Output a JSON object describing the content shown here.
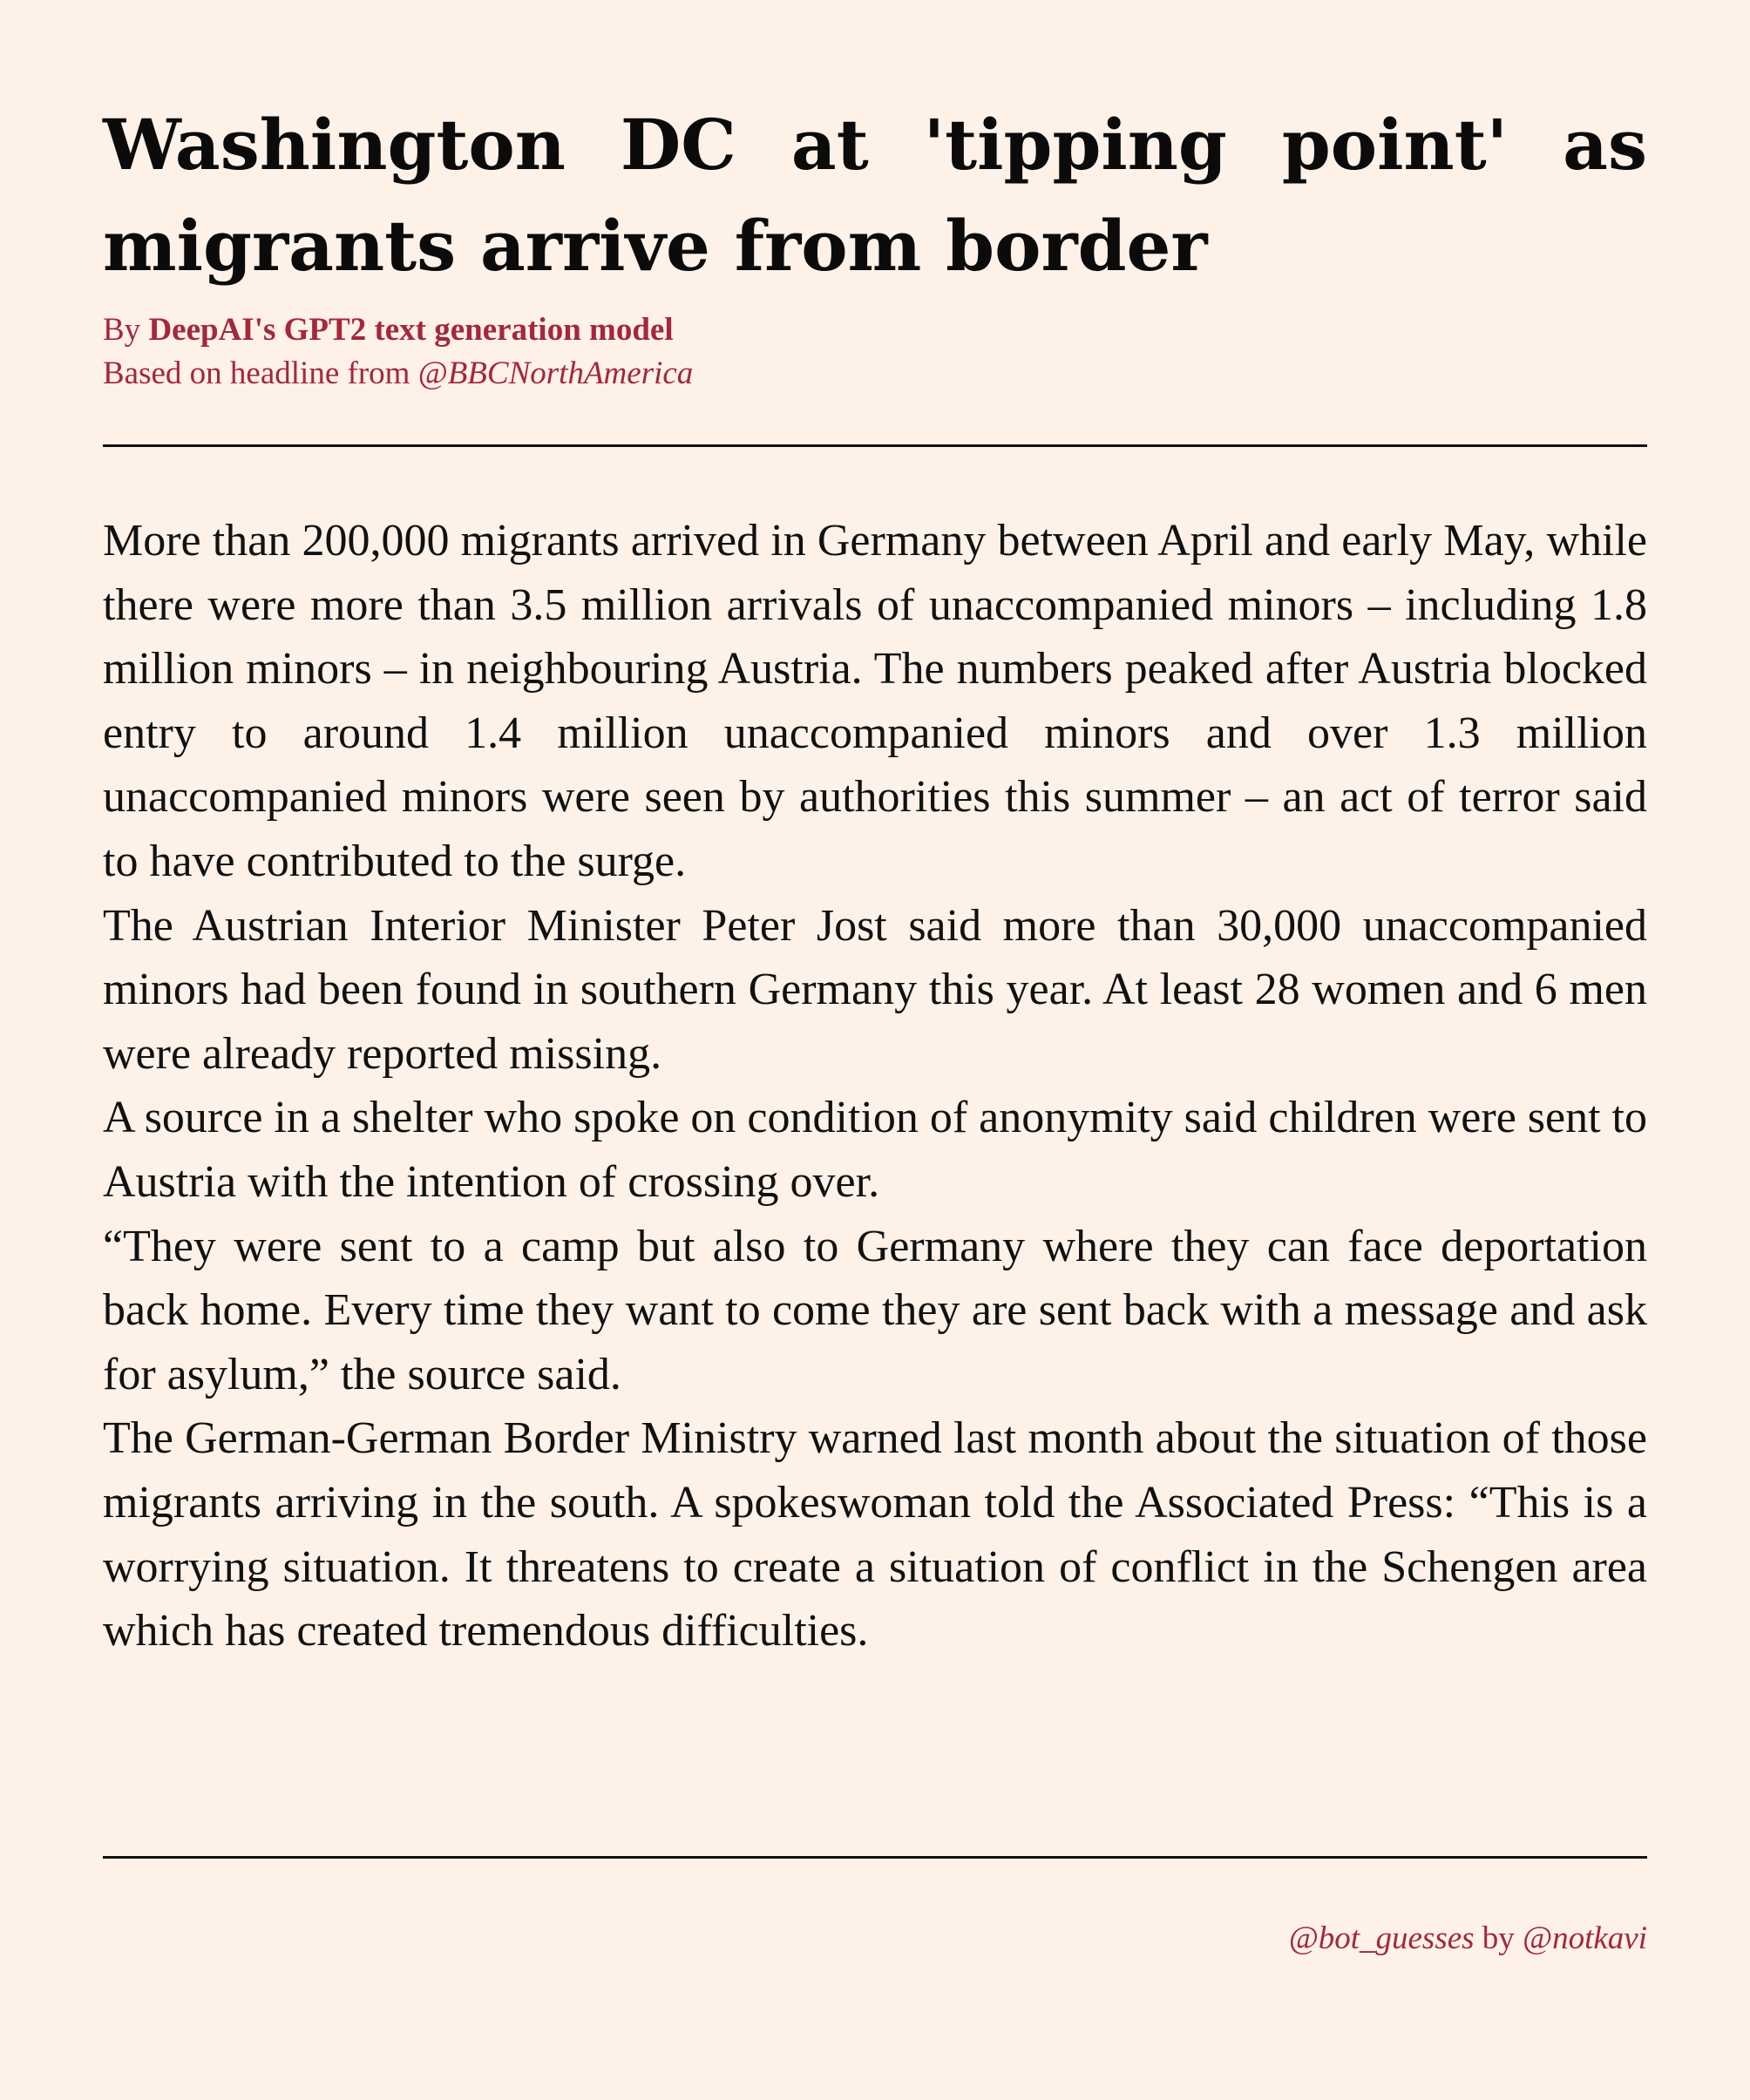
{
  "article": {
    "headline": "Washington DC at 'tipping point' as migrants arrive from border",
    "byline": {
      "prefix": "By ",
      "author": "DeepAI's GPT2 text generation model",
      "source_prefix": "Based on headline from ",
      "source_handle": "@BBCNorthAmerica"
    },
    "paragraphs": [
      "More than 200,000 migrants arrived in Germany between April and early May, while there were more than 3.5 million arrivals of unaccompanied minors – including 1.8 million minors – in neighbouring Austria. The numbers peaked after Austria blocked entry to around 1.4 million unaccompanied minors and over 1.3 million unaccompanied minors were seen by authorities this summer – an act of terror said to have contributed to the surge.",
      "The Austrian Interior Minister Peter Jost said more than 30,000 unaccompanied minors had been found in southern Germany this year. At least 28 women and 6 men were already reported missing.",
      "A source in a shelter who spoke on condition of anonymity said children were sent to Austria with the intention of crossing over.",
      "“They were sent to a camp but also to Germany where they can face deportation back home. Every time they want to come they are sent back with a message and ask for asylum,” the source said.",
      "The German-German Border Ministry warned last month about the situation of those migrants arriving in the south. A spokeswoman told the Associated Press: “This is a worrying situation. It threatens to create a situation of conflict in the Schengen area which has created tremendous difficulties."
    ]
  },
  "footer": {
    "bot_handle": "@bot_guesses",
    "by_text": " by ",
    "author_handle": "@notkavi"
  },
  "colors": {
    "background": "#fdf1e8",
    "accent": "#a3283a",
    "text": "#111111"
  }
}
